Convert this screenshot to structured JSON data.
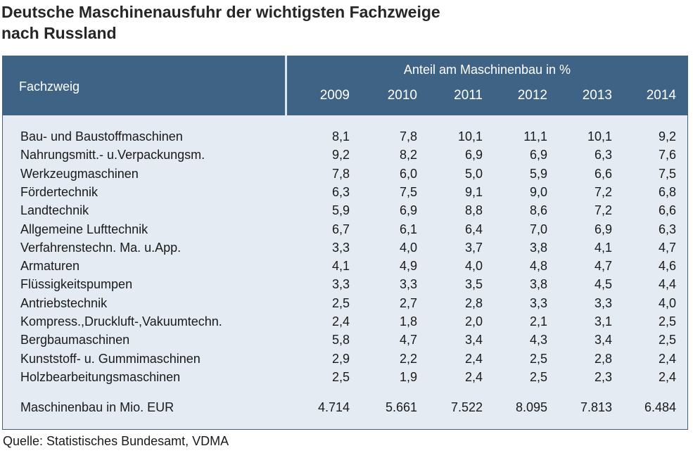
{
  "title_line1": "Deutsche Maschinenausfuhr der wichtigsten Fachzweige",
  "title_line2": "nach Russland",
  "source": "Quelle: Statistisches Bundesamt, VDMA",
  "colors": {
    "header_bg": "#3f6385",
    "panel_bg": "#e4ebf2",
    "header_text": "#ffffff"
  },
  "chart_data": {
    "type": "table",
    "title": "Deutsche Maschinenausfuhr der wichtigsten Fachzweige nach Russland",
    "row_header": "Fachzweig",
    "column_group": "Anteil am Maschinenbau in %",
    "columns": [
      "2009",
      "2010",
      "2011",
      "2012",
      "2013",
      "2014"
    ],
    "rows": [
      {
        "label": "Bau- und Baustoffmaschinen",
        "values": [
          "8,1",
          "7,8",
          "10,1",
          "11,1",
          "10,1",
          "9,2"
        ]
      },
      {
        "label": "Nahrungsmitt.- u.Verpackungsm.",
        "values": [
          "9,2",
          "8,2",
          "6,9",
          "6,9",
          "6,3",
          "7,6"
        ]
      },
      {
        "label": "Werkzeugmaschinen",
        "values": [
          "7,8",
          "6,0",
          "5,0",
          "5,9",
          "6,6",
          "7,5"
        ]
      },
      {
        "label": "Fördertechnik",
        "values": [
          "6,3",
          "7,5",
          "9,1",
          "9,0",
          "7,2",
          "6,8"
        ]
      },
      {
        "label": "Landtechnik",
        "values": [
          "5,9",
          "6,9",
          "8,8",
          "8,6",
          "7,2",
          "6,6"
        ]
      },
      {
        "label": "Allgemeine Lufttechnik",
        "values": [
          "6,7",
          "6,1",
          "6,4",
          "7,0",
          "6,9",
          "6,3"
        ]
      },
      {
        "label": "Verfahrenstechn. Ma. u.App.",
        "values": [
          "3,3",
          "4,0",
          "3,7",
          "3,8",
          "4,1",
          "4,7"
        ]
      },
      {
        "label": "Armaturen",
        "values": [
          "4,1",
          "4,9",
          "4,0",
          "4,8",
          "4,7",
          "4,6"
        ]
      },
      {
        "label": "Flüssigkeitspumpen",
        "values": [
          "3,3",
          "3,3",
          "3,5",
          "3,8",
          "4,5",
          "4,4"
        ]
      },
      {
        "label": "Antriebstechnik",
        "values": [
          "2,5",
          "2,7",
          "2,8",
          "3,3",
          "3,3",
          "4,0"
        ]
      },
      {
        "label": "Kompress.,Druckluft-,Vakuumtechn.",
        "values": [
          "2,4",
          "1,8",
          "2,0",
          "2,1",
          "3,1",
          "2,5"
        ]
      },
      {
        "label": "Bergbaumaschinen",
        "values": [
          "5,8",
          "4,7",
          "3,4",
          "4,3",
          "3,4",
          "2,5"
        ]
      },
      {
        "label": "Kunststoff- u. Gummimaschinen",
        "values": [
          "2,9",
          "2,2",
          "2,4",
          "2,5",
          "2,8",
          "2,4"
        ]
      },
      {
        "label": "Holzbearbeitungsmaschinen",
        "values": [
          "2,5",
          "1,9",
          "2,4",
          "2,5",
          "2,3",
          "2,4"
        ]
      }
    ],
    "total_row": {
      "label": "Maschinenbau in Mio. EUR",
      "values": [
        "4.714",
        "5.661",
        "7.522",
        "8.095",
        "7.813",
        "6.484"
      ]
    }
  }
}
